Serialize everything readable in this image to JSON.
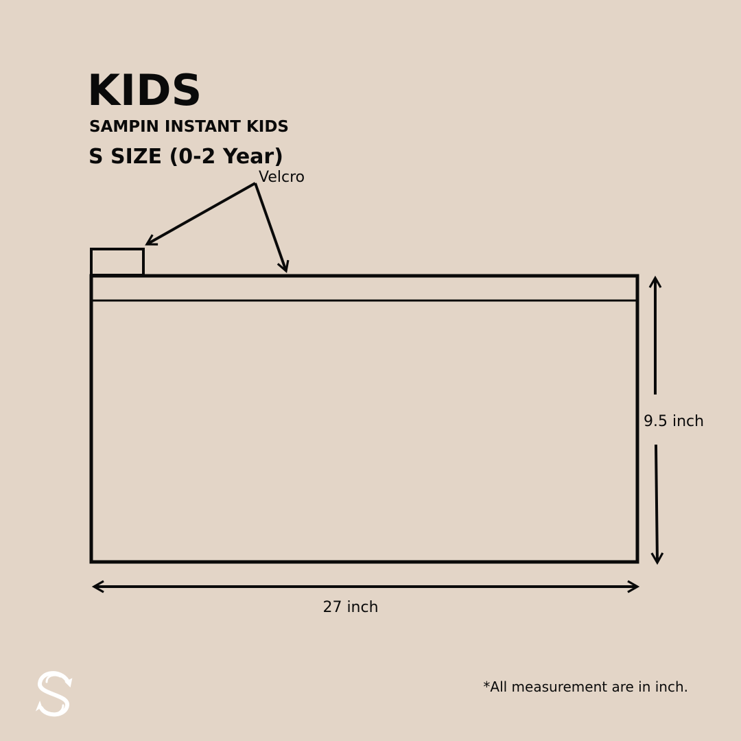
{
  "colors": {
    "background": "#e3d5c7",
    "ink": "#0a0a0a",
    "logo": "#ffffff"
  },
  "header": {
    "title": "KIDS",
    "subtitle": "SAMPIN INSTANT KIDS",
    "size_label": "S SIZE (0-2 Year)"
  },
  "diagram": {
    "velcro_label": "Velcro",
    "height_label": "9.5 inch",
    "width_label": "27 inch"
  },
  "footer": {
    "note": "*All measurement are in inch.",
    "logo_icon": "s-monogram-logo"
  }
}
